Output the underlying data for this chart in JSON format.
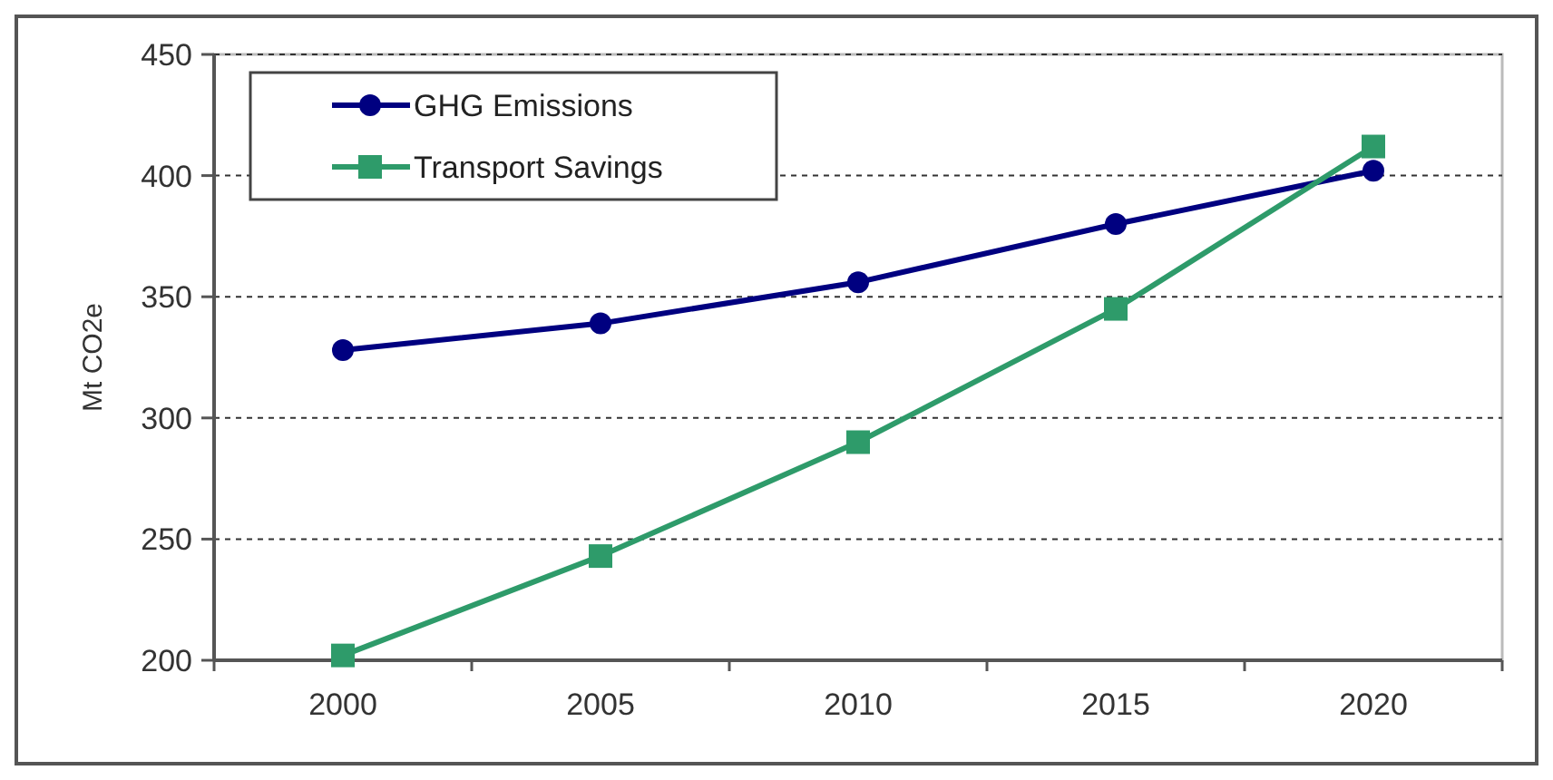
{
  "chart_data": {
    "type": "line",
    "ylabel": "Mt CO2e",
    "categories": [
      "2000",
      "2005",
      "2010",
      "2015",
      "2020"
    ],
    "series": [
      {
        "name": "GHG Emissions",
        "color": "#000080",
        "values": [
          328,
          339,
          356,
          380,
          402
        ],
        "marker": "circle"
      },
      {
        "name": "Transport Savings",
        "color": "#2e9b6a",
        "values": [
          202,
          243,
          290,
          345,
          412
        ],
        "marker": "square"
      }
    ],
    "ylim": [
      200,
      450
    ],
    "yticks": [
      200,
      250,
      300,
      350,
      400,
      450
    ],
    "grid": "y",
    "legend": "top left",
    "line_style": "solid"
  }
}
